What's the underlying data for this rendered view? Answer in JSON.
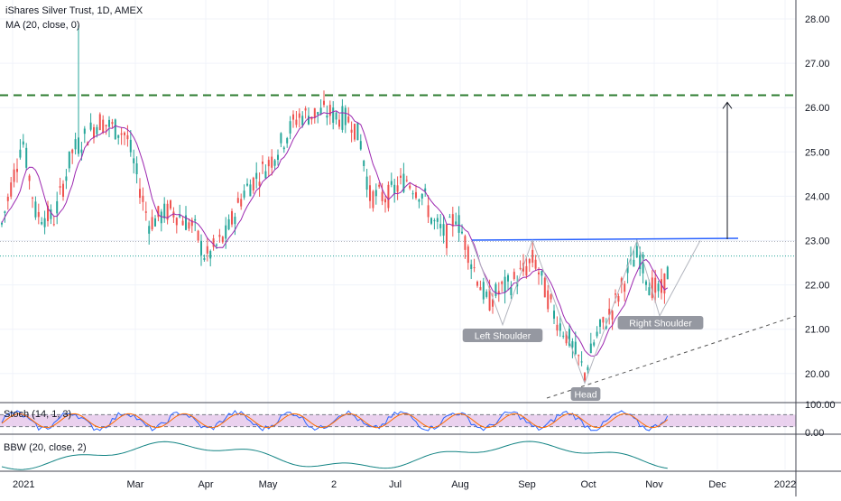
{
  "header": {
    "title": "iShares Silver Trust, 1D, AMEX",
    "ma_label": "MA (20, close, 0)"
  },
  "colors": {
    "up": "#26a69a",
    "down": "#ef5350",
    "ma": "#9c27b0",
    "resistance": "#2e7d32",
    "neckline": "#2962ff",
    "pattern": "#787b86",
    "stoch_k": "#2962ff",
    "stoch_d": "#ff6d00",
    "stoch_band": "#e1bee7",
    "bbw": "#138484"
  },
  "chart_data": {
    "type": "candlestick",
    "price_axis": {
      "ticks": [
        "28.00",
        "27.00",
        "26.00",
        "25.00",
        "24.00",
        "23.00",
        "22.00",
        "21.00",
        "20.00"
      ],
      "range": [
        19.3,
        28.4
      ]
    },
    "time_axis": {
      "labels": [
        "2021",
        "Mar",
        "Apr",
        "May",
        "2",
        "Jul",
        "Aug",
        "Sep",
        "Oct",
        "Nov",
        "Dec",
        "2022"
      ]
    },
    "horizontal_levels": [
      {
        "price": 26.28,
        "style": "dashed"
      },
      {
        "price": 22.98,
        "style": "dotted"
      },
      {
        "price": 22.65,
        "style": "dotted"
      }
    ],
    "neckline_price": 23.03,
    "target_price": 26.2,
    "annotations": [
      {
        "text": "Left Shoulder",
        "price": 21.05
      },
      {
        "text": "Head",
        "price": 19.75
      },
      {
        "text": "Right Shoulder",
        "price": 21.3
      }
    ],
    "stoch_panel": {
      "label": "Stoch (14, 1, 3)",
      "ticks": [
        "100.00",
        "0.00"
      ],
      "bands": [
        80,
        20
      ]
    },
    "bbw_panel": {
      "label": "BBW (20, close, 2)"
    }
  }
}
